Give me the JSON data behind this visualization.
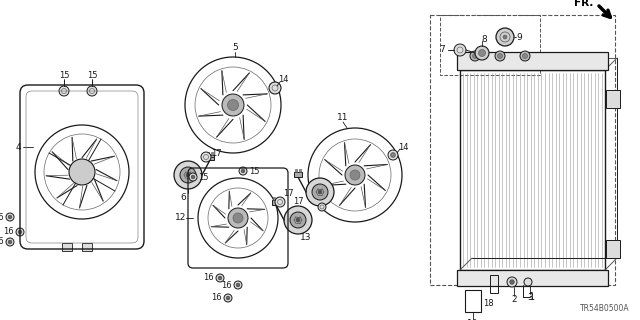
{
  "background_color": "#ffffff",
  "diagram_id": "TR54B0500A",
  "fr_label": "FR.",
  "line_color": "#1a1a1a",
  "gray_fill": "#cccccc",
  "dark_fill": "#444444",
  "mid_fill": "#888888"
}
